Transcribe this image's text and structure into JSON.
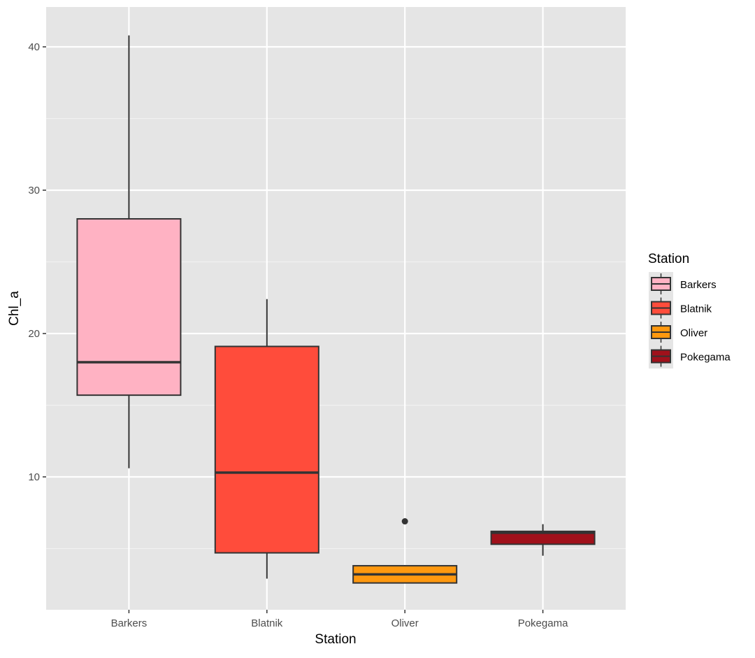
{
  "chart_data": {
    "type": "boxplot",
    "title": "",
    "xlabel": "Station",
    "ylabel": "Chl_a",
    "categories": [
      "Barkers",
      "Blatnik",
      "Oliver",
      "Pokegama"
    ],
    "ylim": [
      0.73,
      42.78
    ],
    "yticks": [
      10,
      20,
      30,
      40
    ],
    "y_minor_ticks": [
      5,
      15,
      25,
      35
    ],
    "grid": true,
    "legend": {
      "title": "Station",
      "position": "right"
    },
    "series": [
      {
        "name": "Barkers",
        "color": "#FFB2C3",
        "whisker_low": 10.6,
        "q1": 15.7,
        "median": 18.0,
        "q3": 28.0,
        "whisker_high": 40.8,
        "outliers": []
      },
      {
        "name": "Blatnik",
        "color": "#FF4C3B",
        "whisker_low": 2.9,
        "q1": 4.7,
        "median": 10.3,
        "q3": 19.1,
        "whisker_high": 22.4,
        "outliers": []
      },
      {
        "name": "Oliver",
        "color": "#FF980F",
        "whisker_low": 2.6,
        "q1": 2.6,
        "median": 3.2,
        "q3": 3.8,
        "whisker_high": 3.85,
        "outliers": [
          6.9
        ]
      },
      {
        "name": "Pokegama",
        "color": "#A0111B",
        "whisker_low": 4.5,
        "q1": 5.3,
        "median": 6.1,
        "q3": 6.2,
        "whisker_high": 6.7,
        "outliers": []
      }
    ]
  }
}
